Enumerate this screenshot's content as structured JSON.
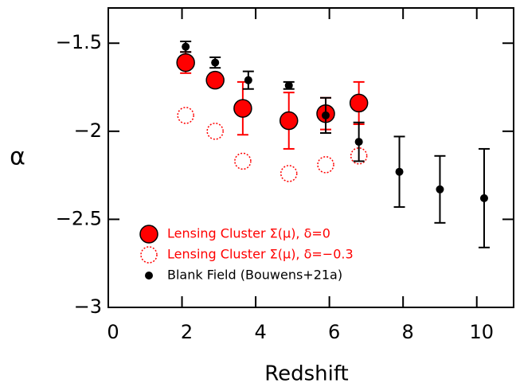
{
  "chart_data": {
    "type": "scatter",
    "x_label": "Redshift",
    "y_label": "α",
    "xlim": [
      0,
      11
    ],
    "ylim": [
      -3,
      -1.3
    ],
    "xticks": [
      0,
      2,
      4,
      6,
      8,
      10
    ],
    "yticks": [
      {
        "value": -1.5,
        "label": "−1.5"
      },
      {
        "value": -2,
        "label": "−2"
      },
      {
        "value": -2.5,
        "label": "−2.5"
      },
      {
        "value": -3,
        "label": "−3"
      }
    ],
    "legend": "lower left",
    "series": [
      {
        "name": "Lensing Cluster Σ(μ), δ=0",
        "color": "#ff0000",
        "marker": "filled",
        "x": [
          2.1,
          2.9,
          3.65,
          4.9,
          5.9,
          6.8
        ],
        "values": [
          -1.61,
          -1.71,
          -1.87,
          -1.94,
          -1.9,
          -1.84
        ],
        "errors": [
          0.06,
          0.03,
          0.15,
          0.16,
          0.09,
          0.12
        ]
      },
      {
        "name": "Lensing Cluster Σ(μ), δ=−0.3",
        "color": "#ff0000",
        "marker": "dotted",
        "x": [
          2.1,
          2.9,
          3.65,
          4.9,
          5.9,
          6.8
        ],
        "values": [
          -1.91,
          -2.0,
          -2.17,
          -2.24,
          -2.19,
          -2.14
        ]
      },
      {
        "name": "Blank Field (Bouwens+21a)",
        "color": "#000000",
        "marker": "small",
        "x": [
          2.1,
          2.9,
          3.8,
          4.9,
          5.9,
          6.8,
          7.9,
          9.0,
          10.2
        ],
        "values": [
          -1.52,
          -1.61,
          -1.71,
          -1.74,
          -1.91,
          -2.06,
          -2.23,
          -2.33,
          -2.38
        ],
        "errors": [
          0.03,
          0.03,
          0.05,
          0.02,
          0.1,
          0.11,
          0.2,
          0.19,
          0.28
        ]
      }
    ]
  }
}
